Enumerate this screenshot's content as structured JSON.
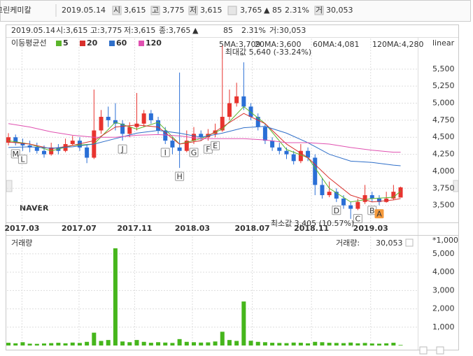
{
  "header": {
    "name": "그린케미칼",
    "date": "2019.05.14",
    "items": [
      {
        "icon": "시",
        "value": "3,615"
      },
      {
        "icon": "고",
        "value": "3,775"
      },
      {
        "icon": "저",
        "value": "3,615"
      }
    ],
    "close": "3,765",
    "change": "▲ 85",
    "change_pct": "2.31%",
    "volume_icon": "거",
    "volume": "30,053"
  },
  "info": {
    "date": "2019.05.14",
    "open": "시:3,615",
    "high": "고:3,775",
    "low": "저:3,615",
    "close": "종:3,765",
    "arrow": "▲",
    "change": "85",
    "pct": "2.31%",
    "volume": "거:30,053"
  },
  "chart_data": {
    "type": "candlestick",
    "scale": "linear",
    "grid": true,
    "legend_title": "이동평균선",
    "up_color": "#e8342f",
    "down_color": "#2a6fd6",
    "ohlc": [
      [
        4420,
        4560,
        4380,
        4500
      ],
      [
        4500,
        4540,
        4380,
        4420
      ],
      [
        4420,
        4480,
        4300,
        4380
      ],
      [
        4380,
        4450,
        4280,
        4350
      ],
      [
        4350,
        4420,
        4260,
        4300
      ],
      [
        4300,
        4380,
        4200,
        4250
      ],
      [
        4250,
        4420,
        4230,
        4350
      ],
      [
        4350,
        4400,
        4250,
        4300
      ],
      [
        4300,
        4480,
        4280,
        4400
      ],
      [
        4400,
        4520,
        4380,
        4450
      ],
      [
        4450,
        4500,
        4300,
        4350
      ],
      [
        4350,
        4400,
        4120,
        4200
      ],
      [
        4200,
        5200,
        4180,
        4600
      ],
      [
        4600,
        4900,
        4550,
        4800
      ],
      [
        4800,
        4950,
        4650,
        4750
      ],
      [
        4750,
        5000,
        4600,
        4700
      ],
      [
        4700,
        4750,
        4450,
        4550
      ],
      [
        4550,
        4720,
        4500,
        4650
      ],
      [
        4650,
        5150,
        4600,
        4700
      ],
      [
        4700,
        4900,
        4650,
        4850
      ],
      [
        4850,
        4900,
        4700,
        4750
      ],
      [
        4750,
        4800,
        4550,
        4600
      ],
      [
        4600,
        4650,
        4400,
        4450
      ],
      [
        4450,
        4500,
        4250,
        4350
      ],
      [
        4350,
        5450,
        4050,
        4300
      ],
      [
        4300,
        4600,
        4280,
        4450
      ],
      [
        4450,
        4650,
        4400,
        4550
      ],
      [
        4550,
        4600,
        4450,
        4500
      ],
      [
        4500,
        4620,
        4450,
        4550
      ],
      [
        4550,
        4700,
        4500,
        4600
      ],
      [
        4600,
        5640,
        4580,
        4800
      ],
      [
        4800,
        5200,
        4750,
        5000
      ],
      [
        5000,
        5300,
        4950,
        5100
      ],
      [
        5100,
        5600,
        4900,
        4950
      ],
      [
        4950,
        5000,
        4750,
        4800
      ],
      [
        4800,
        4850,
        4600,
        4650
      ],
      [
        4650,
        4700,
        4400,
        4450
      ],
      [
        4450,
        4500,
        4300,
        4350
      ],
      [
        4350,
        4420,
        4250,
        4300
      ],
      [
        4300,
        4350,
        4180,
        4250
      ],
      [
        4250,
        4300,
        4100,
        4150
      ],
      [
        4150,
        4400,
        4120,
        4300
      ],
      [
        4300,
        4350,
        4150,
        4200
      ],
      [
        4200,
        4250,
        3650,
        3800
      ],
      [
        3800,
        3900,
        3600,
        3650
      ],
      [
        3650,
        3850,
        3620,
        3700
      ],
      [
        3700,
        3750,
        3550,
        3600
      ],
      [
        3600,
        3650,
        3450,
        3500
      ],
      [
        3500,
        3550,
        3405,
        3450
      ],
      [
        3450,
        3600,
        3430,
        3550
      ],
      [
        3550,
        3800,
        3520,
        3650
      ],
      [
        3650,
        3700,
        3550,
        3600
      ],
      [
        3600,
        3650,
        3500,
        3550
      ],
      [
        3550,
        3700,
        3540,
        3600
      ],
      [
        3600,
        3800,
        3580,
        3700
      ],
      [
        3615,
        3775,
        3615,
        3765
      ]
    ],
    "ma_x": [
      0,
      3,
      6,
      9,
      12,
      15,
      18,
      21,
      24,
      27,
      30,
      33,
      36,
      39,
      42,
      45,
      48,
      51,
      54,
      55
    ],
    "moving_averages": [
      {
        "name": "5",
        "color": "#5bb52b",
        "status_label": "5MA:",
        "status_value": "3,709",
        "values": [
          4450,
          4400,
          4300,
          4380,
          4400,
          4720,
          4620,
          4720,
          4400,
          4480,
          4620,
          4950,
          4700,
          4320,
          4200,
          3750,
          3550,
          3600,
          3620,
          3709
        ]
      },
      {
        "name": "20",
        "color": "#d9302c",
        "status_label": "20MA:",
        "status_value": "3,600",
        "values": [
          4430,
          4400,
          4330,
          4380,
          4450,
          4650,
          4680,
          4650,
          4400,
          4450,
          4650,
          4850,
          4700,
          4400,
          4200,
          3900,
          3650,
          3550,
          3580,
          3600
        ]
      },
      {
        "name": "60",
        "color": "#2f6fc9",
        "status_label": "60MA:",
        "status_value": "4,081",
        "values": [
          4350,
          4360,
          4340,
          4360,
          4400,
          4480,
          4560,
          4600,
          4560,
          4500,
          4560,
          4640,
          4660,
          4560,
          4420,
          4250,
          4150,
          4130,
          4090,
          4081
        ]
      },
      {
        "name": "120",
        "color": "#e050b0",
        "status_label": "120MA:",
        "status_value": "4,280",
        "values": [
          4700,
          4650,
          4580,
          4530,
          4500,
          4500,
          4530,
          4540,
          4520,
          4480,
          4480,
          4480,
          4460,
          4420,
          4420,
          4400,
          4350,
          4310,
          4280,
          4280
        ]
      }
    ],
    "signals": [
      {
        "label": "M",
        "at": 1
      },
      {
        "label": "L",
        "at": 2
      },
      {
        "label": "J",
        "at": 16
      },
      {
        "label": "I",
        "at": 22
      },
      {
        "label": "H",
        "at": 24
      },
      {
        "label": "G",
        "at": 26
      },
      {
        "label": "F",
        "at": 28
      },
      {
        "label": "E",
        "at": 29
      },
      {
        "label": "D",
        "at": 46
      },
      {
        "label": "C",
        "at": 49
      },
      {
        "label": "B",
        "at": 51
      },
      {
        "label": "A",
        "at": 52
      }
    ],
    "max_label": "최대값 5,640 (-33.24%)",
    "min_label": "최소값 3,405 (10.57%)",
    "watermark": "NAVER",
    "xlim": [
      -0.2,
      57.4
    ],
    "xticks": [
      {
        "value": 1.9,
        "label": "2017.03"
      },
      {
        "value": 9.9,
        "label": "2017.07"
      },
      {
        "value": 17.7,
        "label": "2017.11"
      },
      {
        "value": 25.8,
        "label": "2018.03"
      },
      {
        "value": 34.2,
        "label": "2018.07"
      },
      {
        "value": 42.5,
        "label": "2018.11"
      },
      {
        "value": 50.8,
        "label": "2019.03"
      }
    ],
    "ylim": [
      3250,
      5950
    ],
    "yticks": [
      {
        "value": 3500,
        "label": "3,500"
      },
      {
        "value": 3750,
        "label": "3,750"
      },
      {
        "value": 4000,
        "label": "4,000"
      },
      {
        "value": 4250,
        "label": "4,250"
      },
      {
        "value": 4500,
        "label": "4,500"
      },
      {
        "value": 4750,
        "label": "4,750"
      },
      {
        "value": 5000,
        "label": "5,000"
      },
      {
        "value": 5250,
        "label": "5,250"
      },
      {
        "value": 5500,
        "label": "5,500"
      }
    ],
    "volume": {
      "title": "거래량",
      "status_label": "거래량:",
      "status_value": "30,053",
      "unit": "*1,000",
      "color": "#46b61c",
      "values": [
        150,
        120,
        180,
        100,
        90,
        110,
        130,
        150,
        120,
        160,
        140,
        200,
        700,
        250,
        300,
        5300,
        220,
        180,
        300,
        200,
        150,
        180,
        160,
        140,
        350,
        200,
        180,
        160,
        170,
        220,
        750,
        300,
        250,
        2400,
        260,
        200,
        180,
        150,
        140,
        130,
        160,
        150,
        120,
        200,
        180,
        150,
        140,
        130,
        160,
        120,
        140,
        110,
        100,
        120,
        150,
        30.053
      ],
      "ylim": [
        0,
        5950
      ],
      "yticks": [
        {
          "value": 1000,
          "label": "1,000"
        },
        {
          "value": 2000,
          "label": "2,000"
        },
        {
          "value": 3000,
          "label": "3,000"
        },
        {
          "value": 4000,
          "label": "4,000"
        },
        {
          "value": 5000,
          "label": "5,000"
        }
      ]
    }
  }
}
